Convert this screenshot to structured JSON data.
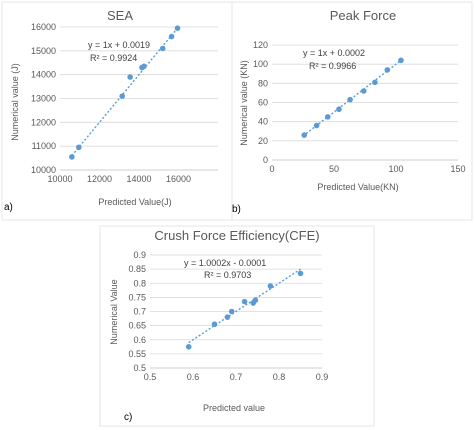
{
  "figure": {
    "panel_labels": [
      "a)",
      "b)",
      "c)"
    ]
  },
  "colors": {
    "marker": "#5b9bd5",
    "trendline": "#5b9bd5",
    "grid": "#d9d9d9",
    "text": "#595959"
  },
  "chart_data": [
    {
      "type": "scatter",
      "title": "SEA",
      "xlabel": "Predicted Value(J)",
      "ylabel": "Numerical value (J)",
      "xlim": [
        10000,
        18000
      ],
      "ylim": [
        10000,
        16000
      ],
      "xticks": [
        "10000",
        "12000",
        "14000",
        "16000"
      ],
      "yticks": [
        "10000",
        "11000",
        "12000",
        "13000",
        "14000",
        "15000",
        "16000"
      ],
      "grid": true,
      "trendline": {
        "equation": "y = 1x + 0.0019",
        "r2": "R² = 0.9924",
        "slope": 1,
        "intercept": 0.0019,
        "x_range": [
          10600,
          15950
        ]
      },
      "series": [
        {
          "x": [
            10600,
            10950,
            13150,
            13550,
            14150,
            14250,
            15200,
            15650,
            15950
          ],
          "y": [
            10550,
            10950,
            13100,
            13900,
            14300,
            14350,
            15100,
            15600,
            15950
          ]
        }
      ]
    },
    {
      "type": "scatter",
      "title": "Peak Force",
      "xlabel": "Predicted Value(KN)",
      "ylabel": "Numerical value (KN)",
      "xlim": [
        0,
        150
      ],
      "ylim": [
        0,
        120
      ],
      "xticks": [
        "0",
        "50",
        "100",
        "150"
      ],
      "yticks": [
        "0",
        "20",
        "40",
        "60",
        "80",
        "100",
        "120"
      ],
      "grid": true,
      "trendline": {
        "equation": "y = 1x + 0.0002",
        "r2": "R² = 0.9966",
        "slope": 1,
        "intercept": 0.0002,
        "x_range": [
          25,
          105
        ]
      },
      "series": [
        {
          "x": [
            26,
            36,
            45,
            54,
            63,
            74,
            83,
            93,
            104
          ],
          "y": [
            26,
            36,
            45,
            53,
            63,
            72,
            81,
            94,
            104
          ]
        }
      ]
    },
    {
      "type": "scatter",
      "title": "Crush Force Efficiency(CFE)",
      "xlabel": "Predicted value",
      "ylabel": "Numerical  Value",
      "xlim": [
        0.5,
        0.9
      ],
      "ylim": [
        0.5,
        0.9
      ],
      "xticks": [
        "0.5",
        "0.6",
        "0.7",
        "0.8",
        "0.9"
      ],
      "yticks": [
        "0.5",
        "0.55",
        "0.6",
        "0.65",
        "0.7",
        "0.75",
        "0.8",
        "0.85",
        "0.9"
      ],
      "grid": true,
      "trendline": {
        "equation": "y = 1.0002x - 0.0001",
        "r2": "R² = 0.9703",
        "slope": 1.0002,
        "intercept": -0.0001,
        "x_range": [
          0.59,
          0.85
        ]
      },
      "series": [
        {
          "x": [
            0.59,
            0.65,
            0.68,
            0.69,
            0.72,
            0.74,
            0.745,
            0.78,
            0.85
          ],
          "y": [
            0.575,
            0.655,
            0.68,
            0.7,
            0.735,
            0.73,
            0.74,
            0.79,
            0.835
          ]
        }
      ]
    }
  ]
}
